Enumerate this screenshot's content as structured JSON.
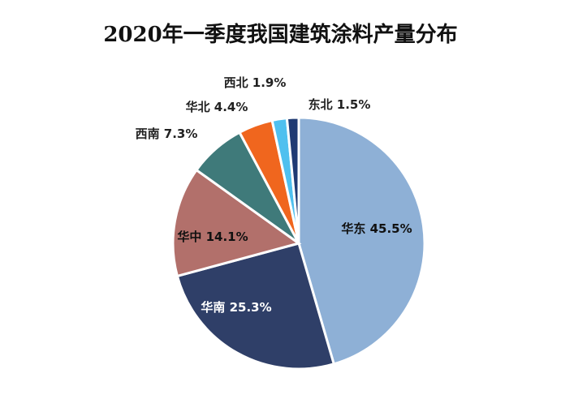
{
  "chart_data": {
    "type": "pie",
    "title": "2020年一季度我国建筑涂料产量分布",
    "slices": [
      {
        "name": "华东",
        "value": 45.5,
        "label": "华东 45.5%",
        "color": "#8eb0d6"
      },
      {
        "name": "华南",
        "value": 25.3,
        "label": "华南 25.3%",
        "color": "#2f3f68"
      },
      {
        "name": "华中",
        "value": 14.1,
        "label": "华中 14.1%",
        "color": "#b2706b"
      },
      {
        "name": "西南",
        "value": 7.3,
        "label": "西南 7.3%",
        "color": "#3f7a7a"
      },
      {
        "name": "华北",
        "value": 4.4,
        "label": "华北 4.4%",
        "color": "#f0661e"
      },
      {
        "name": "西北",
        "value": 1.9,
        "label": "西北 1.9%",
        "color": "#4fc0ef"
      },
      {
        "name": "东北",
        "value": 1.5,
        "label": "东北 1.5%",
        "color": "#1f3a73"
      }
    ],
    "start": "12 o'clock",
    "direction": "clockwise",
    "legend": "none",
    "label_position": "inside for large slices, outside for small slices"
  }
}
